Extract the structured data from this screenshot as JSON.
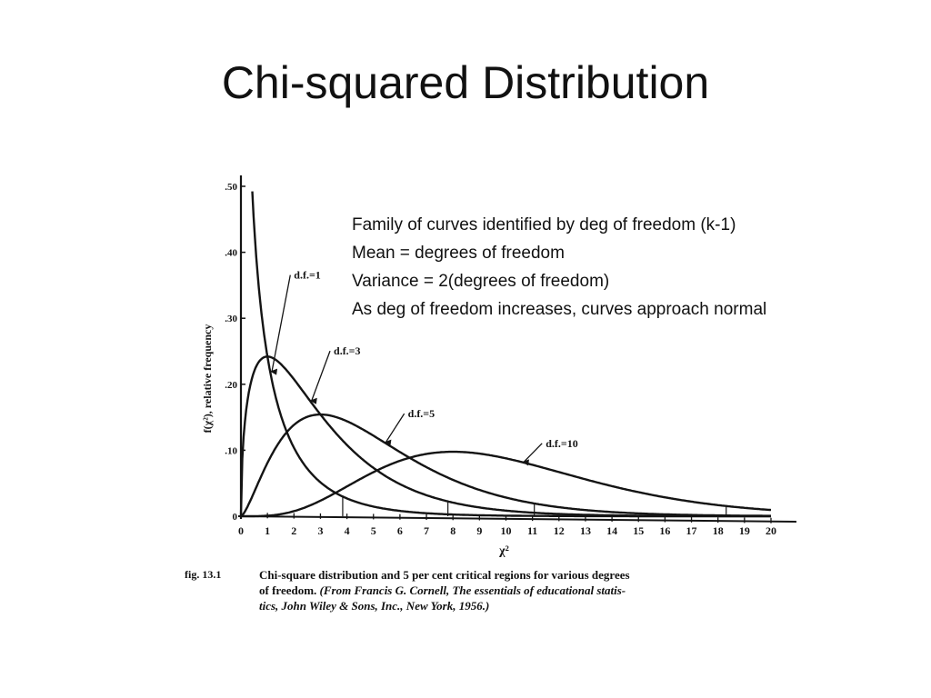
{
  "slide": {
    "title": "Chi-squared Distribution",
    "notes": [
      "Family of curves identified by deg of freedom (k-1)",
      "Mean = degrees of freedom",
      "Variance = 2(degrees of freedom)",
      "As deg of freedom increases, curves approach normal"
    ]
  },
  "caption": {
    "fig": "fig. 13.1",
    "line1": "Chi-square distribution and 5 per cent critical regions for various degrees",
    "line2_main": "of freedom.",
    "line2_source": "(From Francis G. Cornell, The essentials of educational statis-",
    "line3_source": "tics, John Wiley & Sons, Inc., New York, 1956.)"
  },
  "chart_data": {
    "type": "line",
    "function": "chi-square probability density",
    "xlabel": "χ²",
    "ylabel": "f(χ²), relative frequency",
    "xlim": [
      0,
      20
    ],
    "ylim": [
      0,
      0.5
    ],
    "x_ticks": [
      "0",
      "1",
      "2",
      "3",
      "4",
      "5",
      "6",
      "7",
      "8",
      "9",
      "10",
      "11",
      "12",
      "13",
      "14",
      "15",
      "16",
      "17",
      "18",
      "19",
      "20"
    ],
    "y_ticks": [
      {
        "value": 0,
        "label": "0"
      },
      {
        "value": 0.1,
        "label": ".10"
      },
      {
        "value": 0.2,
        "label": ".20"
      },
      {
        "value": 0.3,
        "label": ".30"
      },
      {
        "value": 0.4,
        "label": ".40"
      },
      {
        "value": 0.5,
        "label": ".50"
      }
    ],
    "grid": false,
    "series": [
      {
        "name": "d.f. = 1",
        "label": "d.f.=1",
        "df": 1,
        "critical_value": 3.84,
        "label_at": [
          2.0,
          0.36
        ]
      },
      {
        "name": "d.f. = 3",
        "label": "d.f.=3",
        "df": 3,
        "critical_value": 7.81,
        "label_at": [
          3.5,
          0.245
        ]
      },
      {
        "name": "d.f. = 5",
        "label": "d.f.=5",
        "df": 5,
        "critical_value": 11.07,
        "label_at": [
          6.3,
          0.15
        ]
      },
      {
        "name": "d.f. = 10",
        "label": "d.f.=10",
        "df": 10,
        "critical_value": 18.31,
        "label_at": [
          11.5,
          0.105
        ]
      }
    ]
  }
}
